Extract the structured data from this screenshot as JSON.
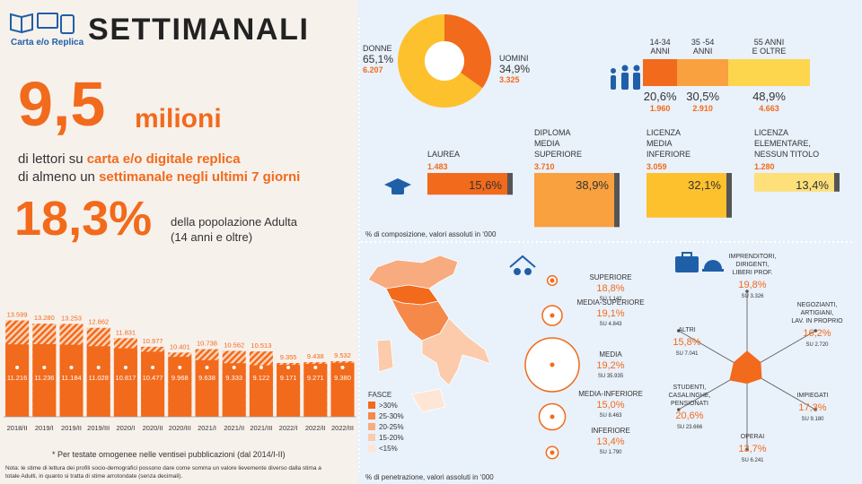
{
  "header": {
    "logo_text": "Carta e/o Replica",
    "title": "SETTIMANALI"
  },
  "summary": {
    "readers_number": "9,5",
    "readers_unit": "milioni",
    "line1_prefix": "di lettori su ",
    "line1_highlight": "carta e/o digitale replica",
    "line2_prefix": "di almeno un ",
    "line2_highlight": "settimanale negli ultimi 7 giorni",
    "share": "18,3%",
    "share_text": [
      "della popolazione Adulta",
      "(14 anni e oltre)"
    ]
  },
  "footer_note": [
    "Nota: le stime di lettura dei profili socio-demografici possono dare come somma un valore lievemente diverso dalla stima a",
    "totale Adulti, in quanto si tratta di stime arrotondate (senza decimali)."
  ],
  "chart_data": [
    {
      "type": "bar",
      "overlap": true,
      "categories": [
        "2018/II",
        "2019/I",
        "2019/II",
        "2019/III",
        "2020/I",
        "2020/II",
        "2020/III",
        "2021/I",
        "2021/II",
        "2021/III",
        "2022/I",
        "2022/II",
        "2022/III"
      ],
      "series": [
        {
          "color": "#f26a1b",
          "pattern": "hatched",
          "values": [
            13599,
            13280,
            13253,
            12862,
            11831,
            10977,
            10401,
            10738,
            10562,
            10513,
            9355,
            9438,
            9532
          ],
          "value_labels": [
            "13.599",
            "13.280",
            "13.253",
            "12.862",
            "11.831",
            "10.977",
            "10.401",
            "10.738",
            "10.562",
            "10.513",
            "9.355",
            "9.438",
            "9.532"
          ]
        },
        {
          "color": "#f26a1b",
          "values": [
            11216,
            11236,
            11184,
            11028,
            10817,
            10477,
            9968,
            9638,
            9333,
            9122,
            9171,
            9271,
            9380
          ],
          "value_labels": [
            "11.216",
            "11.236",
            "11.184",
            "11.028",
            "10.817",
            "10.477",
            "9.968",
            "9.638",
            "9.333",
            "9.122",
            "9.171",
            "9.271",
            "9.380"
          ]
        }
      ],
      "ylim": [
        4000,
        14000
      ],
      "note": "* Per testate omogenee nelle ventisei pubblicazioni (dal 2014/I-II)"
    },
    {
      "type": "pie",
      "donut": true,
      "categories": [
        "DONNE",
        "UOMINI"
      ],
      "values": [
        65.1,
        34.9
      ],
      "value_labels": [
        "65,1%",
        "34,9%"
      ],
      "counts": [
        6207,
        3325
      ],
      "count_labels": [
        "6.207",
        "3.325"
      ],
      "colors": [
        "#fdc12e",
        "#f26a1b"
      ]
    },
    {
      "type": "stacked-bar",
      "orientation": "horizontal",
      "categories": [
        [
          "14-34",
          "ANNI"
        ],
        [
          "35 -54",
          "ANNI"
        ],
        [
          "55 ANNI",
          "E OLTRE"
        ]
      ],
      "values": [
        20.6,
        30.5,
        48.9
      ],
      "value_labels": [
        "20,6%",
        "30,5%",
        "48,9%"
      ],
      "counts": [
        1960,
        2910,
        4663
      ],
      "count_labels": [
        "1.960",
        "2.910",
        "4.663"
      ],
      "colors": [
        "#f26a1b",
        "#f9a03f",
        "#fdd64e"
      ],
      "xlim": [
        0,
        100
      ]
    },
    {
      "type": "bar",
      "categories": [
        [
          "LAUREA"
        ],
        [
          "DIPLOMA",
          "MEDIA",
          "SUPERIORE"
        ],
        [
          "LICENZA",
          "MEDIA",
          "INFERIORE"
        ],
        [
          "LICENZA",
          "ELEMENTARE,",
          "NESSUN TITOLO"
        ]
      ],
      "values": [
        15.6,
        38.9,
        32.1,
        13.4
      ],
      "value_labels": [
        "15,6%",
        "38,9%",
        "32,1%",
        "13,4%"
      ],
      "counts": [
        1483,
        3710,
        3059,
        1280
      ],
      "count_labels": [
        "1.483",
        "3.710",
        "3.059",
        "1.280"
      ],
      "colors": [
        "#f26a1b",
        "#f9a03f",
        "#fdc12e",
        "#fde07a"
      ],
      "ylim": [
        0,
        40
      ],
      "note": "% di composizione, valori assoluti in ‘000"
    },
    {
      "type": "choropleth",
      "legend_title": "FASCE",
      "legend": [
        ">30%",
        "25-30%",
        "20-25%",
        "15-20%",
        "<15%"
      ],
      "colors": [
        "#f26a1b",
        "#f5894a",
        "#f8ab7e",
        "#fbcbab",
        "#fde6d5"
      ]
    },
    {
      "type": "bubble",
      "categories": [
        "SUPERIORE",
        "MEDIA-SUPERIORE",
        "MEDIA",
        "MEDIA-INFERIORE",
        "INFERIORE"
      ],
      "values": [
        18.8,
        19.1,
        19.2,
        15.0,
        13.4
      ],
      "value_labels": [
        "18,8%",
        "19,1%",
        "19,2%",
        "15,0%",
        "13,4%"
      ],
      "sizes": [
        1142,
        4843,
        35935,
        8463,
        1790
      ],
      "size_labels": [
        "SU 1.142",
        "SU 4.843",
        "SU 35.935",
        "SU 8.463",
        "SU 1.790"
      ],
      "color": "#f26a1b"
    },
    {
      "type": "radar",
      "categories": [
        [
          "IMPRENDITORI,",
          "DIRIGENTI,",
          "LIBERI PROF."
        ],
        [
          "NEGOZIANTI,",
          "ARTIGIANI,",
          "LAV. IN PROPRIO"
        ],
        [
          "IMPIEGATI"
        ],
        [
          "OPERAI"
        ],
        [
          "STUDENTI,",
          "CASALINGHE,",
          "PENSIONATI"
        ],
        [
          "ALTRI"
        ]
      ],
      "values": [
        19.8,
        16.2,
        17.3,
        13.7,
        20.6,
        15.8
      ],
      "value_labels": [
        "19,8%",
        "16,2%",
        "17,3%",
        "13,7%",
        "20,6%",
        "15,8%"
      ],
      "bases": [
        3326,
        2720,
        9180,
        6241,
        23666,
        7041
      ],
      "base_labels": [
        "SU 3.326",
        "SU 2.720",
        "SU 9.180",
        "SU 6.241",
        "SU 23.666",
        "SU 7.041"
      ],
      "rlim": [
        0,
        80
      ],
      "color": "#f26a1b",
      "note": "% di penetrazione, valori assoluti in ‘000"
    }
  ]
}
